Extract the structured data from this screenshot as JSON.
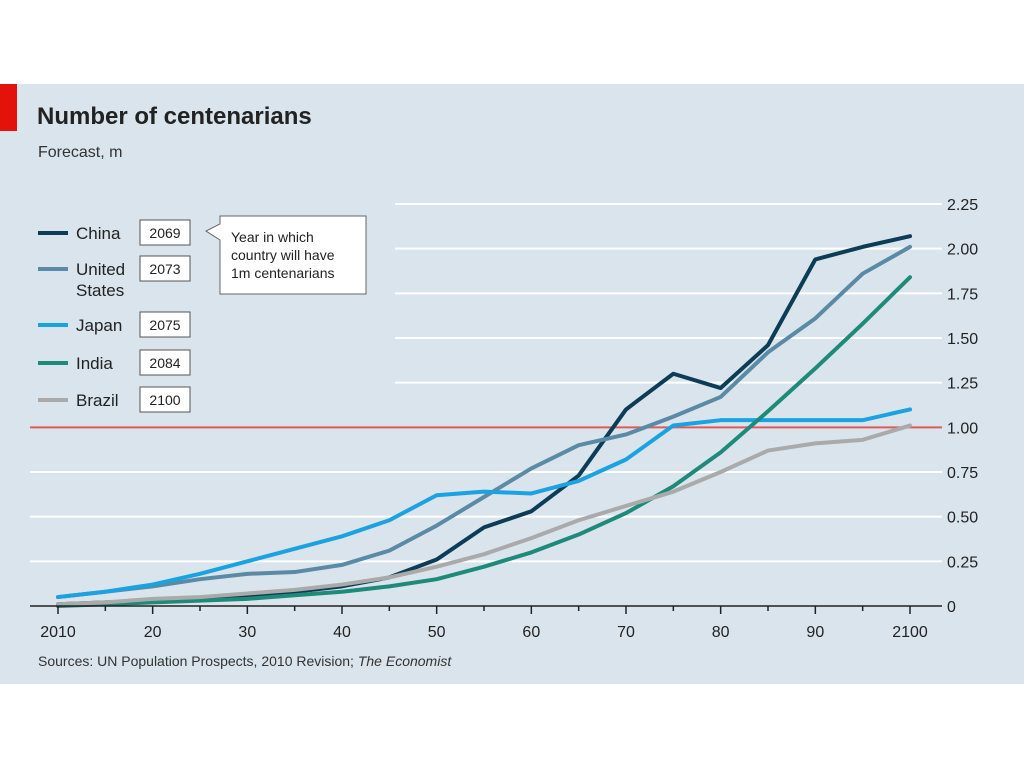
{
  "chart_data": {
    "type": "line",
    "title": "Number of centenarians",
    "subtitle": "Forecast, m",
    "source_prefix": "Sources: UN Population Prospects, 2010 Revision; ",
    "source_italic": "The Economist",
    "x_tick_labels": [
      "2010",
      "20",
      "30",
      "40",
      "50",
      "60",
      "70",
      "80",
      "90",
      "2100"
    ],
    "x_ticks": [
      2010,
      2020,
      2030,
      2040,
      2050,
      2060,
      2070,
      2080,
      2090,
      2100
    ],
    "y_tick_labels": [
      "0",
      "0.25",
      "0.50",
      "0.75",
      "1.00",
      "1.25",
      "1.50",
      "1.75",
      "2.00",
      "2.25"
    ],
    "y_ticks": [
      0,
      0.25,
      0.5,
      0.75,
      1.0,
      1.25,
      1.5,
      1.75,
      2.0,
      2.25
    ],
    "xlim": [
      2010,
      2100
    ],
    "ylim": [
      0,
      2.25
    ],
    "grid": true,
    "reference_line": {
      "y": 1.0,
      "color": "#e05a5a"
    },
    "x": [
      2010,
      2015,
      2020,
      2025,
      2030,
      2035,
      2040,
      2045,
      2050,
      2055,
      2060,
      2065,
      2070,
      2075,
      2080,
      2085,
      2090,
      2095,
      2100
    ],
    "series": [
      {
        "name": "China",
        "box": "2069",
        "color": "#0d3d56",
        "values": [
          0.01,
          0.02,
          0.03,
          0.04,
          0.06,
          0.08,
          0.11,
          0.16,
          0.26,
          0.44,
          0.53,
          0.73,
          1.1,
          1.3,
          1.22,
          1.46,
          1.94,
          2.01,
          2.07
        ]
      },
      {
        "name": "United States",
        "name_lines": [
          "United",
          "States"
        ],
        "box": "2073",
        "color": "#5a8aa5",
        "values": [
          0.05,
          0.08,
          0.11,
          0.15,
          0.18,
          0.19,
          0.23,
          0.31,
          0.45,
          0.61,
          0.77,
          0.9,
          0.96,
          1.06,
          1.17,
          1.42,
          1.61,
          1.86,
          2.01
        ]
      },
      {
        "name": "Japan",
        "box": "2075",
        "color": "#1ba2e0",
        "values": [
          0.05,
          0.08,
          0.12,
          0.18,
          0.25,
          0.32,
          0.39,
          0.48,
          0.62,
          0.64,
          0.63,
          0.7,
          0.82,
          1.01,
          1.04,
          1.04,
          1.04,
          1.04,
          1.1
        ]
      },
      {
        "name": "India",
        "box": "2084",
        "color": "#1e8a7a",
        "values": [
          0.0,
          0.01,
          0.02,
          0.03,
          0.04,
          0.06,
          0.08,
          0.11,
          0.15,
          0.22,
          0.3,
          0.4,
          0.52,
          0.67,
          0.86,
          1.09,
          1.33,
          1.58,
          1.84
        ]
      },
      {
        "name": "Brazil",
        "box": "2100",
        "color": "#aaaaaa",
        "values": [
          0.01,
          0.02,
          0.04,
          0.05,
          0.07,
          0.09,
          0.12,
          0.16,
          0.22,
          0.29,
          0.38,
          0.48,
          0.56,
          0.64,
          0.75,
          0.87,
          0.91,
          0.93,
          1.01
        ]
      }
    ],
    "callout": [
      "Year in which",
      "country will have",
      "1m centenarians"
    ]
  }
}
